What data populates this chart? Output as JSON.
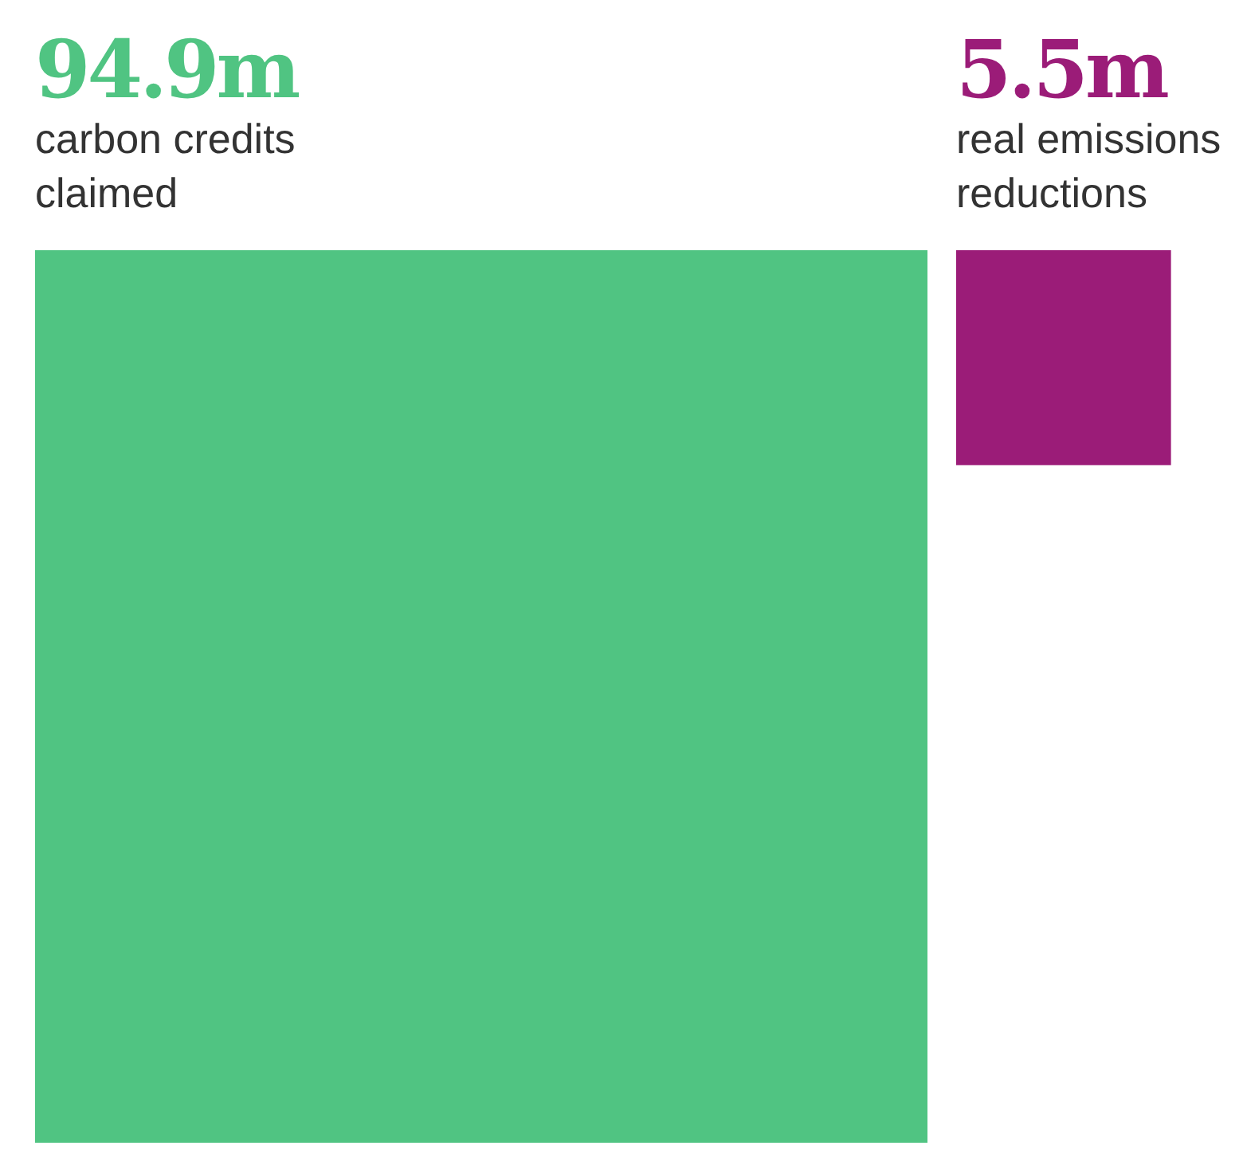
{
  "chart_data": {
    "type": "other",
    "categories": [
      "carbon credits claimed",
      "real emissions reductions"
    ],
    "values": [
      94.9,
      5.5
    ],
    "value_labels": [
      "94.9m",
      "5.5m"
    ],
    "colors": [
      "#50c482",
      "#9b1c78"
    ]
  }
}
